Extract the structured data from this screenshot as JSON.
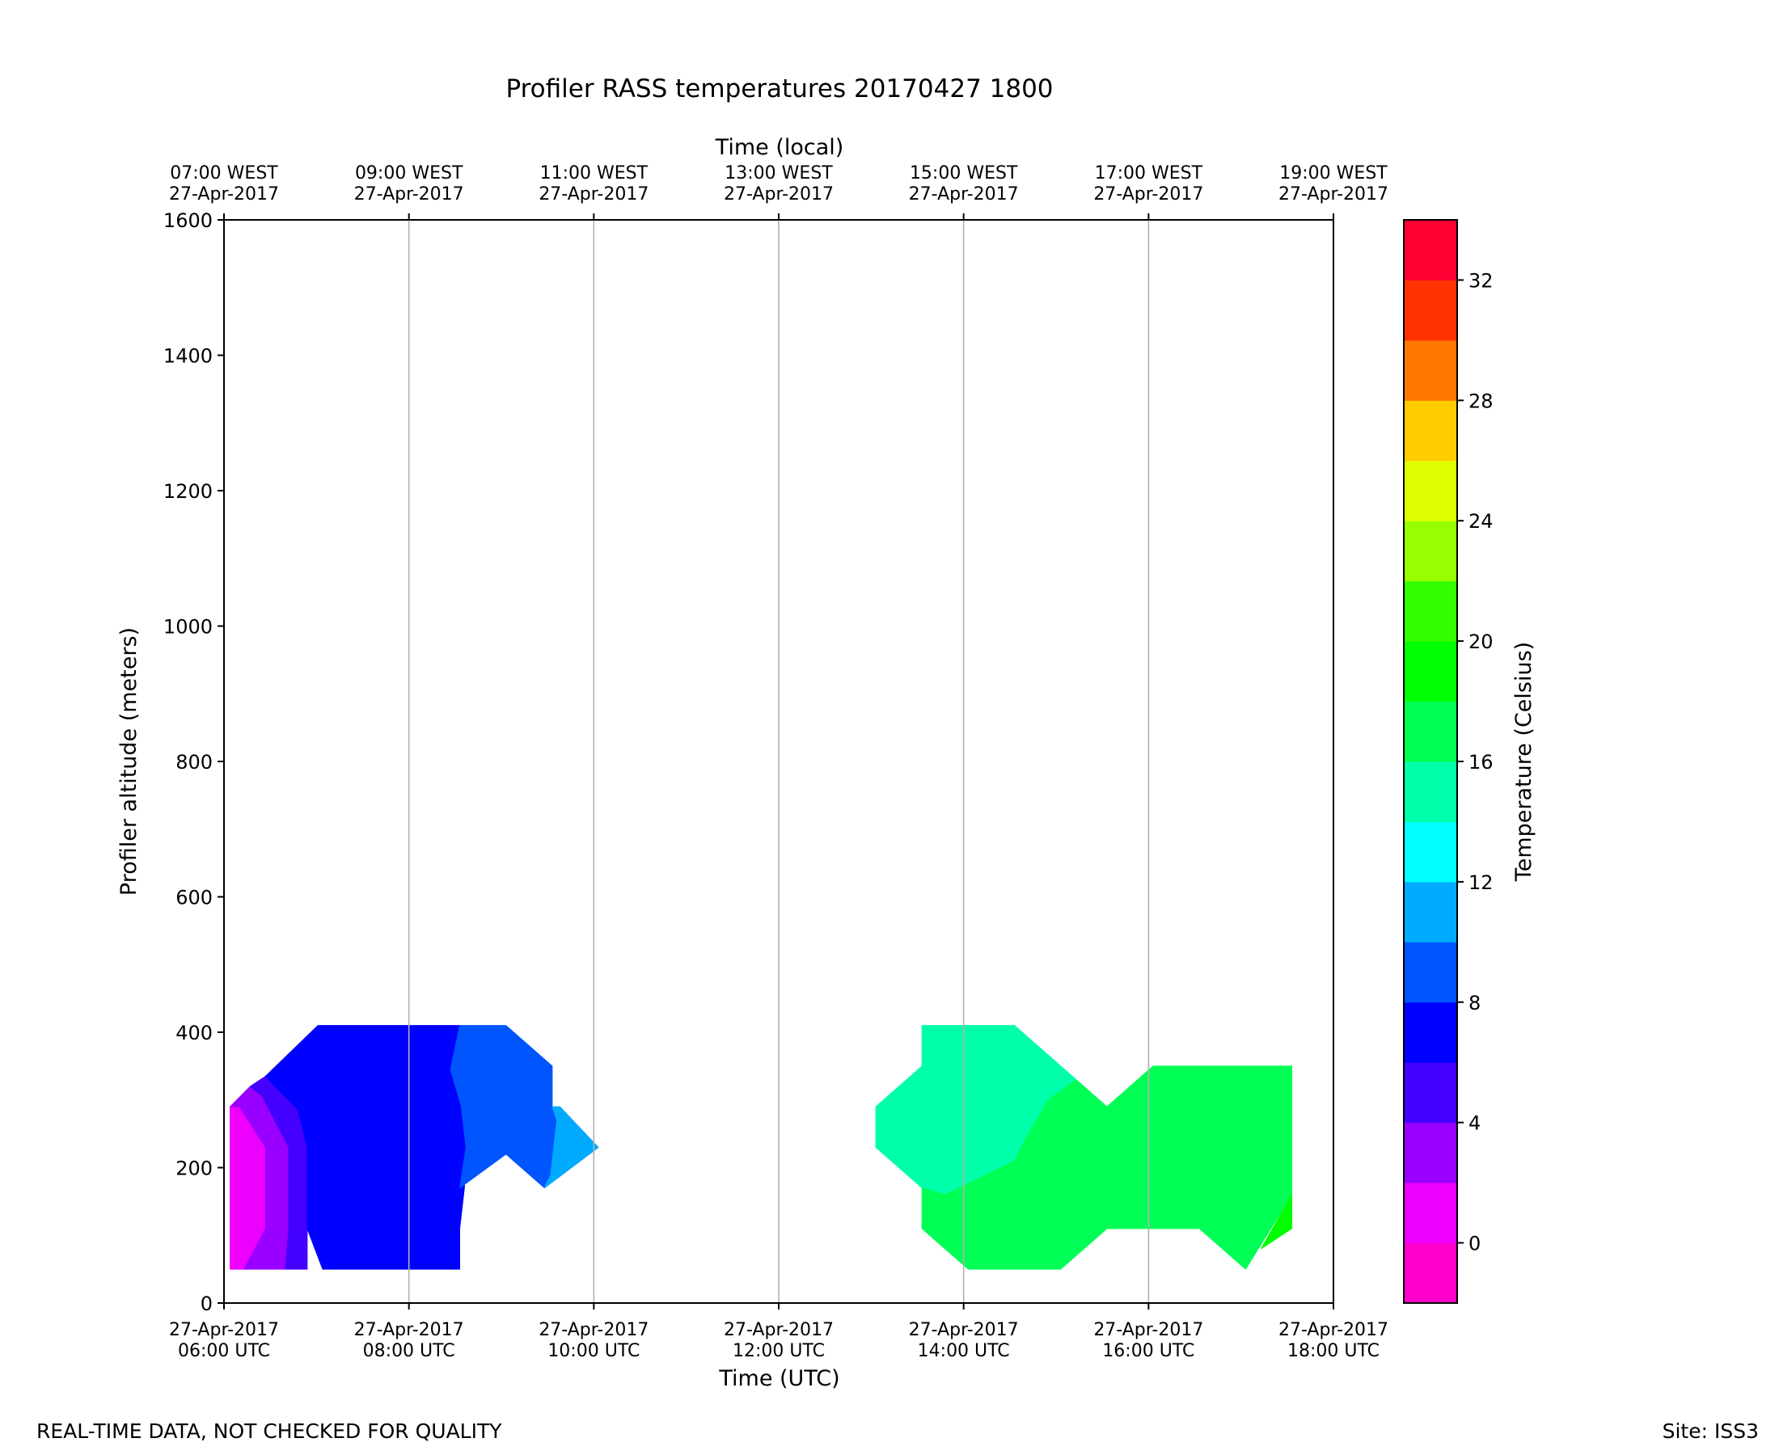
{
  "colors": {
    "bins": [
      "#ff00cc",
      "#ee00ff",
      "#9900ff",
      "#4400ff",
      "#0000ff",
      "#0055ff",
      "#00aaff",
      "#00ffff",
      "#00ffaa",
      "#00ff55",
      "#00ff00",
      "#33ff00",
      "#99ff00",
      "#ddff00",
      "#ffcc00",
      "#ff7700",
      "#ff3300",
      "#ff0033"
    ],
    "grid": "#b0b0b0"
  },
  "chart_data": {
    "type": "heatmap",
    "subtype": "filled-contour",
    "title": "Profiler RASS temperatures 20170427 1800",
    "xlabel": "Time (UTC)",
    "xlabel_top": "Time (local)",
    "ylabel": "Profiler altitude (meters)",
    "colorbar_label": "Temperature (Celsius)",
    "xlim": [
      "2017-04-27T06:00Z",
      "2017-04-27T18:00Z"
    ],
    "ylim": [
      0,
      1600
    ],
    "grid": "vertical-only",
    "x_ticks": [
      {
        "line1": "27-Apr-2017",
        "line2": "06:00 UTC"
      },
      {
        "line1": "27-Apr-2017",
        "line2": "08:00 UTC"
      },
      {
        "line1": "27-Apr-2017",
        "line2": "10:00 UTC"
      },
      {
        "line1": "27-Apr-2017",
        "line2": "12:00 UTC"
      },
      {
        "line1": "27-Apr-2017",
        "line2": "14:00 UTC"
      },
      {
        "line1": "27-Apr-2017",
        "line2": "16:00 UTC"
      },
      {
        "line1": "27-Apr-2017",
        "line2": "18:00 UTC"
      }
    ],
    "x_ticks_top": [
      {
        "line1": "07:00 WEST",
        "line2": "27-Apr-2017"
      },
      {
        "line1": "09:00 WEST",
        "line2": "27-Apr-2017"
      },
      {
        "line1": "11:00 WEST",
        "line2": "27-Apr-2017"
      },
      {
        "line1": "13:00 WEST",
        "line2": "27-Apr-2017"
      },
      {
        "line1": "15:00 WEST",
        "line2": "27-Apr-2017"
      },
      {
        "line1": "17:00 WEST",
        "line2": "27-Apr-2017"
      },
      {
        "line1": "19:00 WEST",
        "line2": "27-Apr-2017"
      }
    ],
    "y_ticks": [
      0,
      200,
      400,
      600,
      800,
      1000,
      1200,
      1400,
      1600
    ],
    "colorbar": {
      "vmin": -2,
      "vmax": 34,
      "step": 2,
      "ticks": [
        0,
        4,
        8,
        12,
        16,
        20,
        24,
        28,
        32
      ]
    },
    "regions": [
      {
        "name": "0-2",
        "bin": 1,
        "polygon": [
          [
            "06:04",
            290
          ],
          [
            "06:04",
            50
          ],
          [
            "06:13",
            50
          ],
          [
            "06:27",
            110
          ],
          [
            "06:27",
            230
          ],
          [
            "06:10",
            290
          ]
        ]
      },
      {
        "name": "2-4",
        "bin": 2,
        "polygon": [
          [
            "06:04",
            290
          ],
          [
            "06:10",
            290
          ],
          [
            "06:27",
            230
          ],
          [
            "06:27",
            110
          ],
          [
            "06:13",
            50
          ],
          [
            "06:40",
            50
          ],
          [
            "06:42",
            110
          ],
          [
            "06:42",
            230
          ],
          [
            "06:25",
            305
          ],
          [
            "06:17",
            320
          ]
        ]
      },
      {
        "name": "4-6",
        "bin": 3,
        "polygon": [
          [
            "06:17",
            320
          ],
          [
            "06:25",
            305
          ],
          [
            "06:42",
            230
          ],
          [
            "06:42",
            110
          ],
          [
            "06:40",
            50
          ],
          [
            "06:54",
            50
          ],
          [
            "06:54",
            110
          ],
          [
            "06:54",
            230
          ],
          [
            "06:48",
            285
          ],
          [
            "06:27",
            335
          ]
        ]
      },
      {
        "name": "6-8",
        "bin": 4,
        "polygon": [
          [
            "06:27",
            335
          ],
          [
            "07:01",
            410
          ],
          [
            "08:33",
            410
          ],
          [
            "08:27",
            345
          ],
          [
            "08:34",
            290
          ],
          [
            "08:37",
            230
          ],
          [
            "08:36",
            170
          ],
          [
            "08:33",
            110
          ],
          [
            "08:33",
            50
          ],
          [
            "08:00",
            50
          ],
          [
            "07:04",
            50
          ],
          [
            "06:54",
            110
          ],
          [
            "06:54",
            230
          ],
          [
            "06:48",
            285
          ]
        ]
      },
      {
        "name": "8-10",
        "bin": 5,
        "polygon": [
          [
            "08:33",
            410
          ],
          [
            "09:03",
            410
          ],
          [
            "09:33",
            350
          ],
          [
            "09:33",
            290
          ],
          [
            "09:36",
            270
          ],
          [
            "09:32",
            190
          ],
          [
            "09:28",
            170
          ],
          [
            "09:03",
            220
          ],
          [
            "08:33",
            170
          ],
          [
            "08:37",
            230
          ],
          [
            "08:34",
            290
          ],
          [
            "08:27",
            345
          ]
        ]
      },
      {
        "name": "10-12",
        "bin": 6,
        "polygon": [
          [
            "09:33",
            290
          ],
          [
            "09:38",
            290
          ],
          [
            "10:03",
            230
          ],
          [
            "09:28",
            170
          ],
          [
            "09:32",
            190
          ],
          [
            "09:36",
            270
          ]
        ]
      },
      {
        "name": "14-16",
        "bin": 8,
        "polygon": [
          [
            "13:33",
            410
          ],
          [
            "14:33",
            410
          ],
          [
            "15:13",
            330
          ],
          [
            "14:55",
            300
          ],
          [
            "14:42",
            250
          ],
          [
            "14:33",
            210
          ],
          [
            "13:48",
            160
          ],
          [
            "13:33",
            170
          ],
          [
            "13:03",
            230
          ],
          [
            "13:03",
            290
          ],
          [
            "13:33",
            350
          ]
        ]
      },
      {
        "name": "16-18",
        "bin": 9,
        "polygon": [
          [
            "13:33",
            170
          ],
          [
            "13:48",
            160
          ],
          [
            "14:33",
            210
          ],
          [
            "14:42",
            250
          ],
          [
            "14:55",
            300
          ],
          [
            "15:13",
            330
          ],
          [
            "15:33",
            290
          ],
          [
            "16:03",
            350
          ],
          [
            "17:33",
            350
          ],
          [
            "17:33",
            160
          ],
          [
            "17:03",
            50
          ],
          [
            "16:33",
            110
          ],
          [
            "15:33",
            110
          ],
          [
            "15:03",
            50
          ],
          [
            "14:03",
            50
          ],
          [
            "13:33",
            110
          ]
        ]
      },
      {
        "name": "18-20",
        "bin": 10,
        "polygon": [
          [
            "17:33",
            160
          ],
          [
            "17:33",
            110
          ],
          [
            "17:13",
            80
          ]
        ]
      }
    ]
  },
  "footer": {
    "left": "REAL-TIME DATA, NOT CHECKED FOR QUALITY",
    "right": "Site: ISS3"
  }
}
